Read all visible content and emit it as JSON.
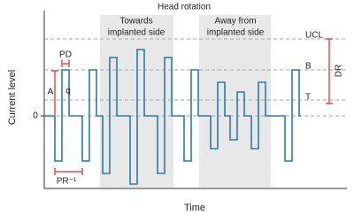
{
  "title": "Head rotation",
  "regions": [
    {
      "lines": [
        "Towards",
        "implanted side"
      ]
    },
    {
      "lines": [
        "Away from",
        "implanted side"
      ]
    }
  ],
  "levels": {
    "ucl": "UCL",
    "b": "B",
    "t": "T",
    "dr": "DR"
  },
  "annotations": {
    "pd": "PD",
    "a": "A",
    "q": "q",
    "pr": "PR⁻¹"
  },
  "axes": {
    "x_label": "Time",
    "y_label": "Current level",
    "zero": "0"
  }
}
